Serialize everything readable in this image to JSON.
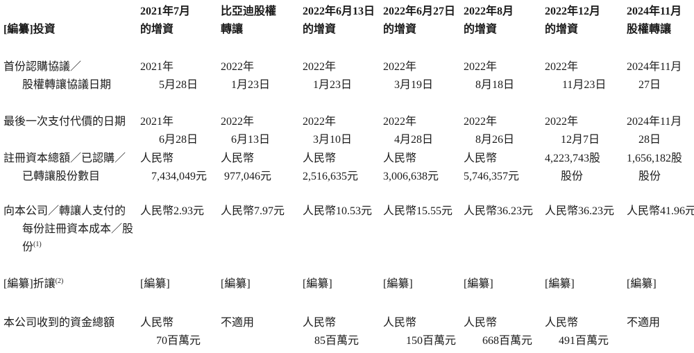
{
  "table": {
    "header": {
      "label": [
        "",
        "[編纂]投資"
      ],
      "columns": [
        [
          "2021年7月",
          "的增資"
        ],
        [
          "比亞迪股權",
          "轉讓"
        ],
        [
          "2022年6月13日",
          "的增資"
        ],
        [
          "2022年6月27日",
          "的增資"
        ],
        [
          "2022年8月",
          "的增資"
        ],
        [
          "2022年12月",
          "的增資"
        ],
        [
          "2024年11月",
          "股權轉讓"
        ]
      ]
    },
    "rows": [
      {
        "label": [
          "首份認購協議／",
          "股權轉讓協議日期"
        ],
        "cells": [
          [
            "2021年",
            "5月28日"
          ],
          [
            "2022年",
            "1月23日"
          ],
          [
            "2022年",
            "1月23日"
          ],
          [
            "2022年",
            "3月19日"
          ],
          [
            "2022年",
            "8月18日"
          ],
          [
            "2022年",
            "11月23日"
          ],
          [
            "2024年11月",
            "27日"
          ]
        ]
      },
      {
        "label": [
          "最後一次支付代價的日期"
        ],
        "cells": [
          [
            "2021年",
            "6月28日"
          ],
          [
            "2022年",
            "6月13日"
          ],
          [
            "2022年",
            "3月10日"
          ],
          [
            "2022年",
            "4月28日"
          ],
          [
            "2022年",
            "8月26日"
          ],
          [
            "2022年",
            "12月7日"
          ],
          [
            "2024年11月",
            "28日"
          ]
        ]
      },
      {
        "label": [
          "註冊資本總額／已認購／",
          "已轉讓股份數目"
        ],
        "cells": [
          [
            "人民幣",
            "7,434,049元"
          ],
          [
            "人民幣",
            "977,046元"
          ],
          [
            "人民幣",
            "2,516,635元"
          ],
          [
            "人民幣",
            "3,006,638元"
          ],
          [
            "人民幣",
            "5,746,357元"
          ],
          [
            "4,223,743股",
            "股份"
          ],
          [
            "1,656,182股",
            "股份"
          ]
        ]
      },
      {
        "label": [
          "向本公司／轉讓人支付的",
          "每份註冊資本成本／股",
          "份"
        ],
        "label_sup": "(1)",
        "cells": [
          [
            "人民幣2.93元"
          ],
          [
            "人民幣7.97元"
          ],
          [
            "人民幣10.53元"
          ],
          [
            "人民幣15.55元"
          ],
          [
            "人民幣36.23元"
          ],
          [
            "人民幣36.23元"
          ],
          [
            "人民幣41.96元"
          ]
        ]
      },
      {
        "label": [
          "[編纂]折讓"
        ],
        "label_sup": "(2)",
        "cells": [
          [
            "[編纂]"
          ],
          [
            "[編纂]"
          ],
          [
            "[編纂]"
          ],
          [
            "[編纂]"
          ],
          [
            "[編纂]"
          ],
          [
            "[編纂]"
          ],
          [
            "[編纂]"
          ]
        ]
      },
      {
        "label": [
          "本公司收到的資金總額"
        ],
        "cells": [
          [
            "人民幣",
            "70百萬元"
          ],
          [
            "不適用"
          ],
          [
            "人民幣",
            "85百萬元"
          ],
          [
            "人民幣",
            "150百萬元"
          ],
          [
            "人民幣",
            "668百萬元"
          ],
          [
            "人民幣",
            "491百萬元"
          ],
          [
            "不適用"
          ]
        ]
      }
    ]
  }
}
